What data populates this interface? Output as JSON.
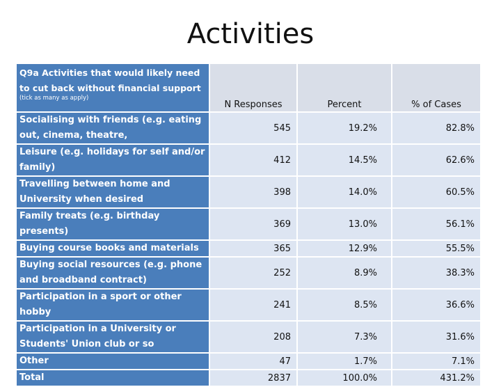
{
  "title": "Activities",
  "table": {
    "question": "Q9a Activities that would likely need to cut back without financial support",
    "note": "(tick as many as apply)",
    "columns": [
      "N Responses",
      "Percent",
      "% of Cases"
    ],
    "rows": [
      {
        "label": "Socialising with friends (e.g. eating out, cinema, theatre,",
        "n": "545",
        "percent": "19.2%",
        "cases": "82.8%"
      },
      {
        "label": "Leisure (e.g. holidays for self and/or family)",
        "n": "412",
        "percent": "14.5%",
        "cases": "62.6%"
      },
      {
        "label": "Travelling between home and University when desired",
        "n": "398",
        "percent": "14.0%",
        "cases": "60.5%"
      },
      {
        "label": "Family treats (e.g. birthday presents)",
        "n": "369",
        "percent": "13.0%",
        "cases": "56.1%"
      },
      {
        "label": "Buying course books and materials",
        "n": "365",
        "percent": "12.9%",
        "cases": "55.5%"
      },
      {
        "label": "Buying social resources (e.g. phone and broadband contract)",
        "n": "252",
        "percent": "8.9%",
        "cases": "38.3%"
      },
      {
        "label": "Participation in a sport or other hobby",
        "n": "241",
        "percent": "8.5%",
        "cases": "36.6%"
      },
      {
        "label": "Participation in a University or Students' Union club or so",
        "n": "208",
        "percent": "7.3%",
        "cases": "31.6%"
      },
      {
        "label": "Other",
        "n": "47",
        "percent": "1.7%",
        "cases": "7.1%"
      },
      {
        "label": "Total",
        "n": "2837",
        "percent": "100.0%",
        "cases": "431.2%"
      }
    ]
  }
}
